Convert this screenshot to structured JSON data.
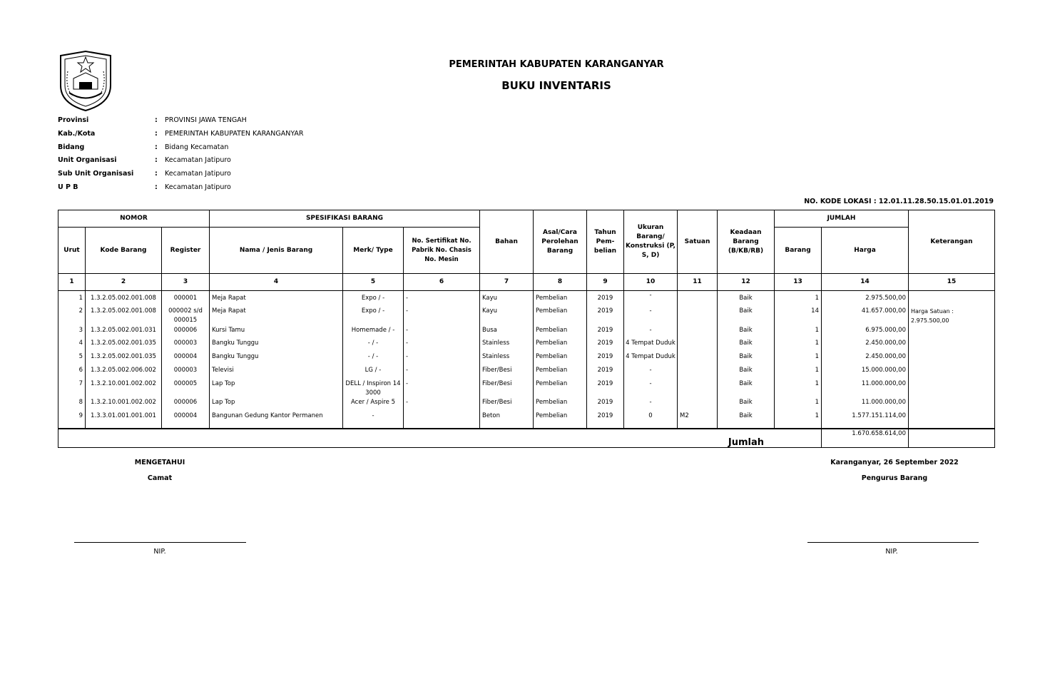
{
  "header": {
    "title1": "PEMERINTAH KABUPATEN KARANGANYAR",
    "title2": "BUKU INVENTARIS",
    "logo": "coat-of-arms-karanganyar"
  },
  "info": [
    {
      "label": "Provinsi",
      "value": "PROVINSI JAWA TENGAH"
    },
    {
      "label": "Kab./Kota",
      "value": "PEMERINTAH KABUPATEN KARANGANYAR"
    },
    {
      "label": "Bidang",
      "value": "Bidang Kecamatan"
    },
    {
      "label": "Unit Organisasi",
      "value": "Kecamatan Jatipuro"
    },
    {
      "label": "Sub Unit Organisasi",
      "value": "Kecamatan Jatipuro"
    },
    {
      "label": "U P B",
      "value": "Kecamatan Jatipuro"
    }
  ],
  "colon": ":",
  "kode_lokasi": "NO. KODE LOKASI : 12.01.11.28.50.15.01.01.2019",
  "table": {
    "groups": {
      "nomor": "NOMOR",
      "spesifikasi": "SPESIFIKASI BARANG",
      "jumlah": "JUMLAH"
    },
    "headers": {
      "urut": "Urut",
      "kode": "Kode Barang",
      "register": "Register",
      "nama": "Nama / Jenis Barang",
      "merk": "Merk/ Type",
      "sertifikat": "No. Sertifikat No. Pabrik No. Chasis No. Mesin",
      "bahan": "Bahan",
      "asal": "Asal/Cara Perolehan Barang",
      "tahun": "Tahun Pem- belian",
      "ukuran": "Ukuran Barang/ Konstruksi (P, S, D)",
      "satuan": "Satuan",
      "keadaan": "Keadaan Barang (B/KB/RB)",
      "barang": "Barang",
      "harga": "Harga",
      "keterangan": "Keterangan"
    },
    "numbers": [
      "1",
      "2",
      "3",
      "4",
      "5",
      "6",
      "7",
      "8",
      "9",
      "10",
      "11",
      "12",
      "13",
      "14",
      "15"
    ],
    "rows": [
      [
        "1",
        "1.3.2.05.002.001.008",
        "000001",
        "Meja Rapat",
        "Expo / -",
        "-",
        "Kayu",
        "Pembelian",
        "2019",
        "-",
        "",
        "Baik",
        "1",
        "2.975.500,00",
        ""
      ],
      [
        "2",
        "1.3.2.05.002.001.008",
        "000002 s/d 000015",
        "Meja Rapat",
        "Expo / -",
        "-",
        "Kayu",
        "Pembelian",
        "2019",
        "-",
        "",
        "Baik",
        "14",
        "41.657.000,00",
        "Harga Satuan : 2.975.500,00"
      ],
      [
        "3",
        "1.3.2.05.002.001.031",
        "000006",
        "Kursi Tamu",
        "Homemade / -",
        "-",
        "Busa",
        "Pembelian",
        "2019",
        "-",
        "",
        "Baik",
        "1",
        "6.975.000,00",
        ""
      ],
      [
        "4",
        "1.3.2.05.002.001.035",
        "000003",
        "Bangku Tunggu",
        "- / -",
        "-",
        "Stainless",
        "Pembelian",
        "2019",
        "4 Tempat Duduk",
        "",
        "Baik",
        "1",
        "2.450.000,00",
        ""
      ],
      [
        "5",
        "1.3.2.05.002.001.035",
        "000004",
        "Bangku Tunggu",
        "- / -",
        "-",
        "Stainless",
        "Pembelian",
        "2019",
        "4 Tempat Duduk",
        "",
        "Baik",
        "1",
        "2.450.000,00",
        ""
      ],
      [
        "6",
        "1.3.2.05.002.006.002",
        "000003",
        "Televisi",
        "LG / -",
        "-",
        "Fiber/Besi",
        "Pembelian",
        "2019",
        "-",
        "",
        "Baik",
        "1",
        "15.000.000,00",
        ""
      ],
      [
        "7",
        "1.3.2.10.001.002.002",
        "000005",
        "Lap Top",
        "DELL / Inspiron 14 3000",
        "-",
        "Fiber/Besi",
        "Pembelian",
        "2019",
        "-",
        "",
        "Baik",
        "1",
        "11.000.000,00",
        ""
      ],
      [
        "8",
        "1.3.2.10.001.002.002",
        "000006",
        "Lap Top",
        "Acer / Aspire 5",
        "-",
        "Fiber/Besi",
        "Pembelian",
        "2019",
        "-",
        "",
        "Baik",
        "1",
        "11.000.000,00",
        ""
      ],
      [
        "9",
        "1.3.3.01.001.001.001",
        "000004",
        "Bangunan Gedung Kantor Permanen",
        "-",
        "",
        "Beton",
        "Pembelian",
        "2019",
        "0",
        "M2",
        "Baik",
        "1",
        "1.577.151.114,00",
        ""
      ]
    ],
    "total_label": "Jumlah",
    "total": "1.670.658.614,00"
  },
  "signature": {
    "left_title": "MENGETAHUI",
    "left_role": "Camat",
    "left_nip": "NIP.",
    "place_date": "Karanganyar, 26 September 2022",
    "right_role": "Pengurus Barang",
    "right_nip": "NIP."
  }
}
